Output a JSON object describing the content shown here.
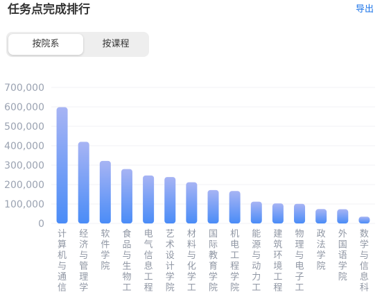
{
  "header": {
    "title": "任务点完成排行",
    "export_label": "导出"
  },
  "segmented": {
    "options": [
      {
        "label": "按院系",
        "active": true
      },
      {
        "label": "按课程",
        "active": false
      }
    ]
  },
  "colors": {
    "bar_top": "#a7b4f4",
    "bar_bottom": "#4a8cf7",
    "grid": "#f0f1f4",
    "link": "#1a73e8"
  },
  "chart_data": {
    "type": "bar",
    "ylim": [
      0,
      700000
    ],
    "yticks": [
      "0",
      "100,000",
      "200,000",
      "300,000",
      "400,000",
      "500,000",
      "600,000",
      "700,000"
    ],
    "categories": [
      "计算机与通信…",
      "经济与管理学…",
      "软件学院",
      "食品与生物工…",
      "电气信息工程…",
      "艺术设计学院…",
      "材料与化学工…",
      "国际教育学院",
      "机电工程学院",
      "能源与动力工…",
      "建筑环境工程…",
      "物理与电子工…",
      "政法学院",
      "外国语学院",
      "数学与信息科…"
    ],
    "values": [
      598000,
      420000,
      322000,
      280000,
      247000,
      239000,
      212000,
      172000,
      167000,
      112000,
      103000,
      101000,
      74000,
      73000,
      35000
    ],
    "grid": true
  }
}
